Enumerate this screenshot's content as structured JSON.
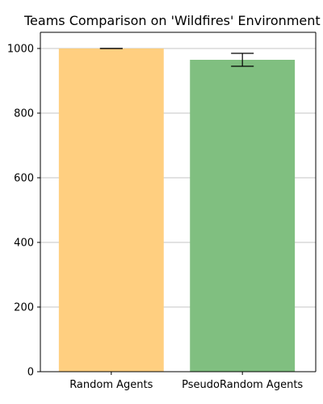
{
  "chart_data": {
    "type": "bar",
    "title": "Teams Comparison on 'Wildfires' Environment",
    "xlabel": "",
    "ylabel": "",
    "categories": [
      "Random Agents",
      "PseudoRandom Agents"
    ],
    "values": [
      1000,
      965
    ],
    "errors": [
      0,
      20
    ],
    "colors": [
      "#ffcf80",
      "#80bf80"
    ],
    "ylim": [
      0,
      1050
    ],
    "yticks": [
      0,
      200,
      400,
      600,
      800,
      1000
    ],
    "grid": "y"
  }
}
